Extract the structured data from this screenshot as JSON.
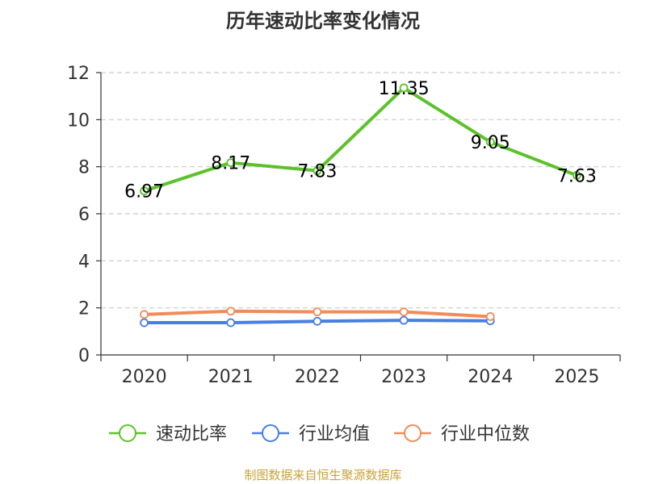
{
  "title": "历年速动比率变化情况",
  "source": "制图数据来自恒生聚源数据库",
  "chart_data": {
    "type": "line",
    "categories": [
      "2020",
      "2021",
      "2022",
      "2023",
      "2024",
      "2025"
    ],
    "ylim": [
      0,
      12
    ],
    "yticks": [
      0,
      2,
      4,
      6,
      8,
      10,
      12
    ],
    "grid": true,
    "legend_position": "bottom",
    "series": [
      {
        "name": "速动比率",
        "color": "#5cc22a",
        "values": [
          6.97,
          8.17,
          7.83,
          11.35,
          9.05,
          7.63
        ],
        "show_labels": true
      },
      {
        "name": "行业均值",
        "color": "#4a7ee0",
        "values": [
          1.37,
          1.37,
          1.43,
          1.47,
          1.45,
          null
        ],
        "show_labels": false
      },
      {
        "name": "行业中位数",
        "color": "#f08c5a",
        "values": [
          1.72,
          1.86,
          1.83,
          1.83,
          1.63,
          null
        ],
        "show_labels": false
      }
    ]
  }
}
